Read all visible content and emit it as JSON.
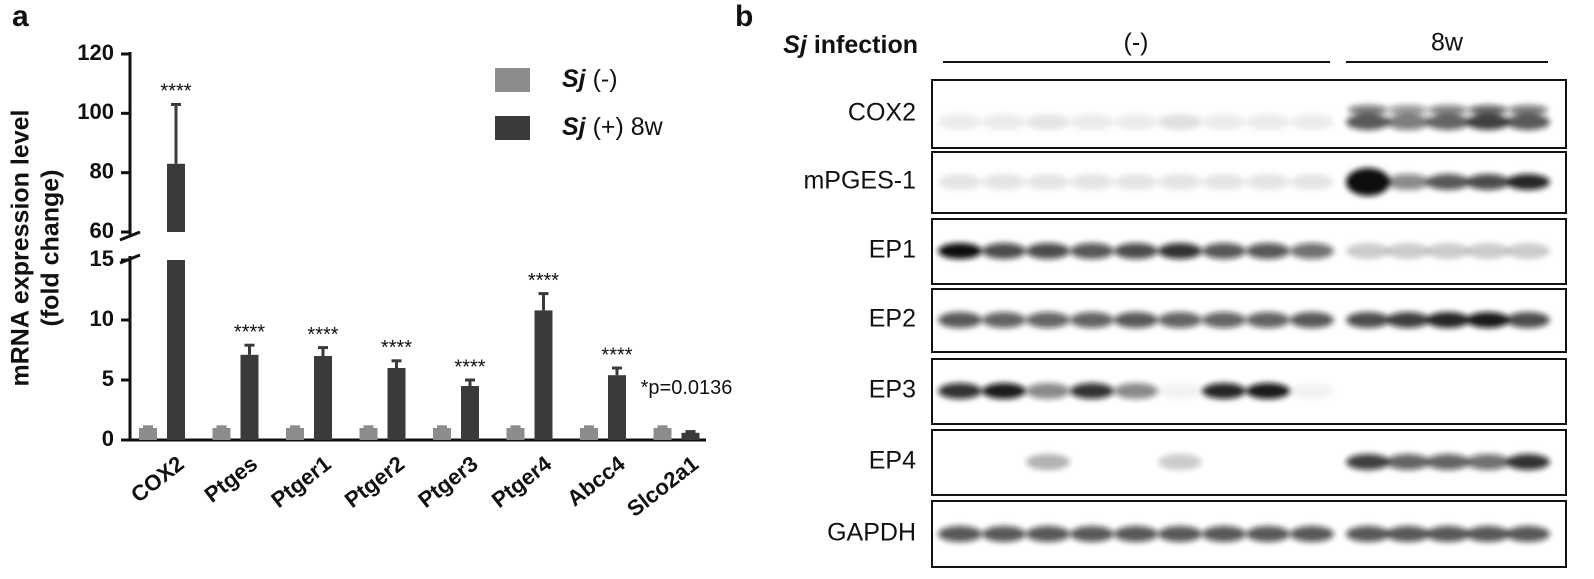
{
  "panel_labels": [
    "a",
    "b"
  ],
  "chart_data": {
    "type": "bar",
    "ylabel": [
      "mRNA expression level",
      "(fold change)"
    ],
    "categories": [
      "COX2",
      "Ptges",
      "Ptger1",
      "Ptger2",
      "Ptger3",
      "Ptger4",
      "Abcc4",
      "Slco2a1"
    ],
    "series": [
      {
        "name": "Sj (-)",
        "color": "#8c8c8c",
        "values": [
          1,
          1,
          1,
          1,
          1,
          1,
          1,
          1
        ],
        "errors": [
          0.1,
          0.1,
          0.1,
          0.1,
          0.1,
          0.1,
          0.1,
          0.1
        ]
      },
      {
        "name": "Sj (+) 8w",
        "color": "#3a3a3a",
        "values": [
          83,
          7.1,
          7,
          6,
          4.5,
          10.8,
          5.4,
          0.6
        ],
        "errors": [
          20,
          0.8,
          0.7,
          0.6,
          0.5,
          1.4,
          0.6,
          0.1
        ]
      }
    ],
    "significance": [
      "****",
      "****",
      "****",
      "****",
      "****",
      "****",
      "****",
      "*p=0.0136"
    ],
    "ylim": [
      0,
      120
    ],
    "axis_break": [
      15,
      60
    ],
    "yticks": [
      0,
      5,
      10,
      15,
      60,
      80,
      100,
      120
    ],
    "legend": "upper right"
  },
  "blot": {
    "infection_label": "Sj infection",
    "groups": [
      "(-)",
      "8w"
    ],
    "rows": [
      "COX2",
      "mPGES-1",
      "EP1",
      "EP2",
      "EP3",
      "EP4",
      "GAPDH"
    ]
  }
}
